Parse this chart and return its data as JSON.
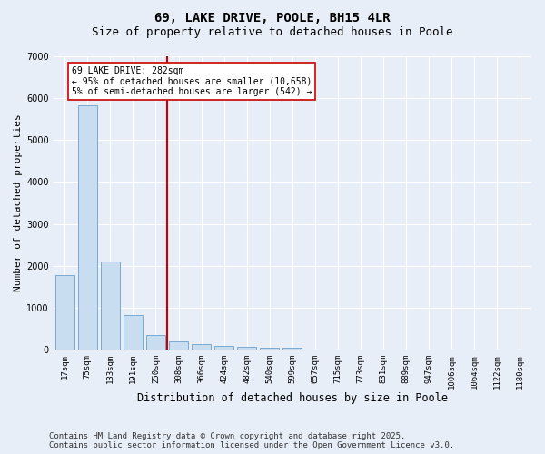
{
  "title1": "69, LAKE DRIVE, POOLE, BH15 4LR",
  "title2": "Size of property relative to detached houses in Poole",
  "xlabel": "Distribution of detached houses by size in Poole",
  "ylabel": "Number of detached properties",
  "categories": [
    "17sqm",
    "75sqm",
    "133sqm",
    "191sqm",
    "250sqm",
    "308sqm",
    "366sqm",
    "424sqm",
    "482sqm",
    "540sqm",
    "599sqm",
    "657sqm",
    "715sqm",
    "773sqm",
    "831sqm",
    "889sqm",
    "947sqm",
    "1006sqm",
    "1064sqm",
    "1122sqm",
    "1180sqm"
  ],
  "values": [
    1780,
    5820,
    2100,
    820,
    360,
    205,
    130,
    90,
    75,
    55,
    40,
    0,
    0,
    0,
    0,
    0,
    0,
    0,
    0,
    0,
    0
  ],
  "bar_color": "#c9ddf0",
  "bar_edge_color": "#6aa0cc",
  "vline_x": 4.5,
  "vline_color": "#cc0000",
  "annotation_text": "69 LAKE DRIVE: 282sqm\n← 95% of detached houses are smaller (10,658)\n5% of semi-detached houses are larger (542) →",
  "annotation_box_color": "#ffffff",
  "annotation_box_edge": "#cc0000",
  "ylim": [
    0,
    7000
  ],
  "yticks": [
    0,
    1000,
    2000,
    3000,
    4000,
    5000,
    6000,
    7000
  ],
  "bg_color": "#e8eef8",
  "plot_bg_color": "#e8eef8",
  "grid_color": "#ffffff",
  "footer_line1": "Contains HM Land Registry data © Crown copyright and database right 2025.",
  "footer_line2": "Contains public sector information licensed under the Open Government Licence v3.0.",
  "title_fontsize": 10,
  "subtitle_fontsize": 9,
  "tick_fontsize": 6.5,
  "ylabel_fontsize": 8,
  "xlabel_fontsize": 8.5,
  "footer_fontsize": 6.5,
  "annotation_fontsize": 7
}
